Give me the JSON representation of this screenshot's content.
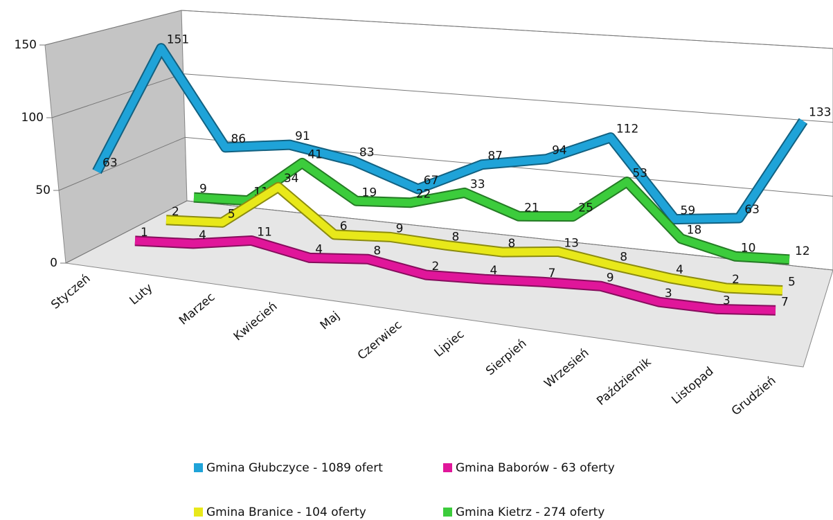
{
  "chart_data": {
    "type": "line3d",
    "categories": [
      "Styczeń",
      "Luty",
      "Marzec",
      "Kwiecień",
      "Maj",
      "Czerwiec",
      "Lipiec",
      "Sierpień",
      "Wrzesień",
      "Październik",
      "Listopad",
      "Grudzień"
    ],
    "series": [
      {
        "name": "Gmina Głubczyce - 1089 ofert",
        "color": "#1fa3d8",
        "values": [
          63,
          151,
          86,
          91,
          83,
          67,
          87,
          94,
          112,
          59,
          63,
          133
        ]
      },
      {
        "name": "Gmina Baborów - 63 oferty",
        "color": "#e0169a",
        "values": [
          1,
          4,
          11,
          4,
          8,
          2,
          4,
          7,
          9,
          3,
          3,
          7
        ]
      },
      {
        "name": "Gmina Branice - 104 oferty",
        "color": "#e8e81a",
        "values": [
          2,
          5,
          34,
          6,
          9,
          8,
          8,
          13,
          8,
          4,
          2,
          5
        ]
      },
      {
        "name": "Gmina Kietrz - 274 oferty",
        "color": "#3ccc3c",
        "values": [
          9,
          11,
          41,
          19,
          22,
          33,
          21,
          25,
          53,
          18,
          10,
          12
        ]
      }
    ],
    "ylim": [
      0,
      150
    ],
    "yticks": [
      0,
      50,
      100,
      150
    ],
    "grid": true,
    "legend": "bottom"
  }
}
